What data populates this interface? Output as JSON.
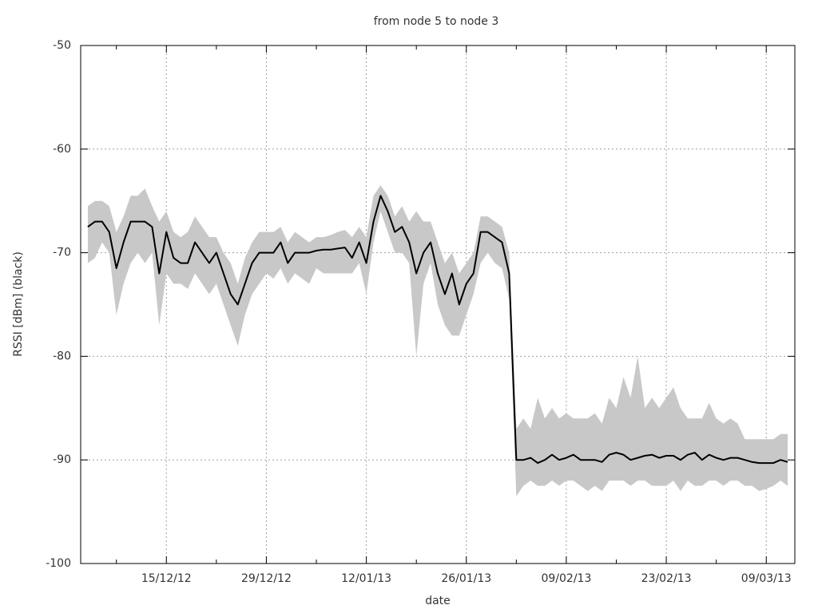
{
  "chart_data": {
    "type": "line",
    "title": "from node 5 to node 3",
    "xlabel": "date",
    "ylabel": "RSSI [dBm] (black)",
    "x": [
      "2012-12-04",
      "2012-12-05",
      "2012-12-06",
      "2012-12-07",
      "2012-12-08",
      "2012-12-09",
      "2012-12-10",
      "2012-12-11",
      "2012-12-12",
      "2012-12-13",
      "2012-12-14",
      "2012-12-15",
      "2012-12-16",
      "2012-12-17",
      "2012-12-18",
      "2012-12-19",
      "2012-12-20",
      "2012-12-21",
      "2012-12-22",
      "2012-12-23",
      "2012-12-24",
      "2012-12-25",
      "2012-12-26",
      "2012-12-27",
      "2012-12-28",
      "2012-12-29",
      "2012-12-30",
      "2012-12-31",
      "2013-01-01",
      "2013-01-02",
      "2013-01-03",
      "2013-01-04",
      "2013-01-05",
      "2013-01-06",
      "2013-01-07",
      "2013-01-08",
      "2013-01-09",
      "2013-01-10",
      "2013-01-11",
      "2013-01-12",
      "2013-01-13",
      "2013-01-14",
      "2013-01-15",
      "2013-01-16",
      "2013-01-17",
      "2013-01-18",
      "2013-01-19",
      "2013-01-20",
      "2013-01-21",
      "2013-01-22",
      "2013-01-23",
      "2013-01-24",
      "2013-01-25",
      "2013-01-26",
      "2013-01-27",
      "2013-01-28",
      "2013-01-29",
      "2013-01-30",
      "2013-01-31",
      "2013-02-01",
      "2013-02-02",
      "2013-02-03",
      "2013-02-04",
      "2013-02-05",
      "2013-02-06",
      "2013-02-07",
      "2013-02-08",
      "2013-02-09",
      "2013-02-10",
      "2013-02-11",
      "2013-02-12",
      "2013-02-13",
      "2013-02-14",
      "2013-02-15",
      "2013-02-16",
      "2013-02-17",
      "2013-02-18",
      "2013-02-19",
      "2013-02-20",
      "2013-02-21",
      "2013-02-22",
      "2013-02-23",
      "2013-02-24",
      "2013-02-25",
      "2013-02-26",
      "2013-02-27",
      "2013-02-28",
      "2013-03-01",
      "2013-03-02",
      "2013-03-03",
      "2013-03-04",
      "2013-03-05",
      "2013-03-06",
      "2013-03-07",
      "2013-03-08",
      "2013-03-09",
      "2013-03-10",
      "2013-03-11",
      "2013-03-12"
    ],
    "series": [
      {
        "color": "#000000",
        "values": [
          -67.5,
          -67,
          -67,
          -68,
          -71.5,
          -69,
          -67,
          -67,
          -67,
          -67.5,
          -72,
          -68,
          -70.5,
          -71,
          -71,
          -69,
          -70,
          -71,
          -70,
          -72,
          -74,
          -75,
          -73,
          -71,
          -70,
          -70,
          -70,
          -69,
          -71,
          -70,
          -70,
          -70,
          -69.8,
          -69.7,
          -69.7,
          -69.6,
          -69.5,
          -70.5,
          -69,
          -71,
          -67,
          -64.5,
          -66,
          -68,
          -67.5,
          -69,
          -72,
          -70,
          -69,
          -72,
          -74,
          -72,
          -75,
          -73,
          -72,
          -68,
          -68,
          -68.5,
          -69,
          -72,
          -90,
          -90,
          -89.8,
          -90.3,
          -90,
          -89.5,
          -90,
          -89.8,
          -89.5,
          -90,
          -90,
          -90,
          -90.2,
          -89.5,
          -89.3,
          -89.5,
          -90,
          -89.8,
          -89.6,
          -89.5,
          -89.8,
          -89.6,
          -89.6,
          -90,
          -89.5,
          -89.3,
          -90,
          -89.5,
          -89.8,
          -90,
          -89.8,
          -89.8,
          -90,
          -90.2,
          -90.3,
          -90.3,
          -90.3,
          -90,
          -90.2
        ]
      }
    ],
    "band": {
      "color": "#c8c8c8",
      "high": [
        -65.5,
        -65,
        -65,
        -65.5,
        -68,
        -66.5,
        -64.5,
        -64.5,
        -63.8,
        -65.5,
        -67,
        -66,
        -68,
        -68.5,
        -68,
        -66.5,
        -67.5,
        -68.5,
        -68.5,
        -70,
        -71,
        -73,
        -70.5,
        -69,
        -68,
        -68,
        -68,
        -67.5,
        -69,
        -68,
        -68.5,
        -69,
        -68.5,
        -68.5,
        -68.3,
        -68,
        -67.8,
        -68.5,
        -67.5,
        -68.5,
        -64.5,
        -63.5,
        -64.5,
        -66.5,
        -65.5,
        -67,
        -66,
        -67,
        -67,
        -69,
        -71,
        -70,
        -72,
        -71,
        -70,
        -66.5,
        -66.5,
        -67,
        -67.5,
        -70,
        -87,
        -86,
        -87,
        -84,
        -86,
        -85,
        -86,
        -85.5,
        -86,
        -86,
        -86,
        -85.5,
        -86.5,
        -84,
        -85,
        -82,
        -84,
        -80,
        -85,
        -84,
        -85,
        -84,
        -83,
        -85,
        -86,
        -86,
        -86,
        -84.5,
        -86,
        -86.5,
        -86,
        -86.5,
        -88,
        -88,
        -88,
        -88,
        -88,
        -87.5,
        -87.5
      ],
      "low": [
        -71,
        -70.5,
        -69,
        -70,
        -76,
        -73,
        -71,
        -70,
        -71,
        -70,
        -77,
        -72,
        -73,
        -73,
        -73.5,
        -72,
        -73,
        -74,
        -73,
        -75,
        -77,
        -79,
        -76,
        -74,
        -73,
        -72,
        -72.5,
        -71.5,
        -73,
        -72,
        -72.5,
        -73,
        -71.5,
        -72,
        -72,
        -72,
        -72,
        -72,
        -71,
        -74,
        -69,
        -66,
        -68,
        -70,
        -70,
        -71,
        -80,
        -73,
        -71,
        -75,
        -77,
        -78,
        -78,
        -76,
        -74,
        -71,
        -70,
        -71,
        -71.5,
        -74.5,
        -93.5,
        -92.5,
        -92,
        -92.5,
        -92.5,
        -92,
        -92.5,
        -92,
        -92,
        -92.5,
        -93,
        -92.5,
        -93,
        -92,
        -92,
        -92,
        -92.5,
        -92,
        -92,
        -92.5,
        -92.5,
        -92.5,
        -92,
        -93,
        -92,
        -92.5,
        -92.5,
        -92,
        -92,
        -92.5,
        -92,
        -92,
        -92.5,
        -92.5,
        -93,
        -92.8,
        -92.5,
        -92,
        -92.5
      ]
    },
    "xlim": [
      "2012-12-03",
      "2013-03-13"
    ],
    "xticks": [
      {
        "value": "2012-12-15",
        "label": "15/12/12"
      },
      {
        "value": "2012-12-29",
        "label": "29/12/12"
      },
      {
        "value": "2013-01-12",
        "label": "12/01/13"
      },
      {
        "value": "2013-01-26",
        "label": "26/01/13"
      },
      {
        "value": "2013-02-09",
        "label": "09/02/13"
      },
      {
        "value": "2013-02-23",
        "label": "23/02/13"
      },
      {
        "value": "2013-03-09",
        "label": "09/03/13"
      }
    ],
    "xminorticks": [
      "2012-12-08",
      "2012-12-22",
      "2013-01-05",
      "2013-01-19",
      "2013-02-02",
      "2013-02-16",
      "2013-03-02"
    ],
    "ylim": [
      -100,
      -50
    ],
    "yticks": [
      -100,
      -90,
      -80,
      -70,
      -60,
      -50
    ],
    "grid": true
  }
}
